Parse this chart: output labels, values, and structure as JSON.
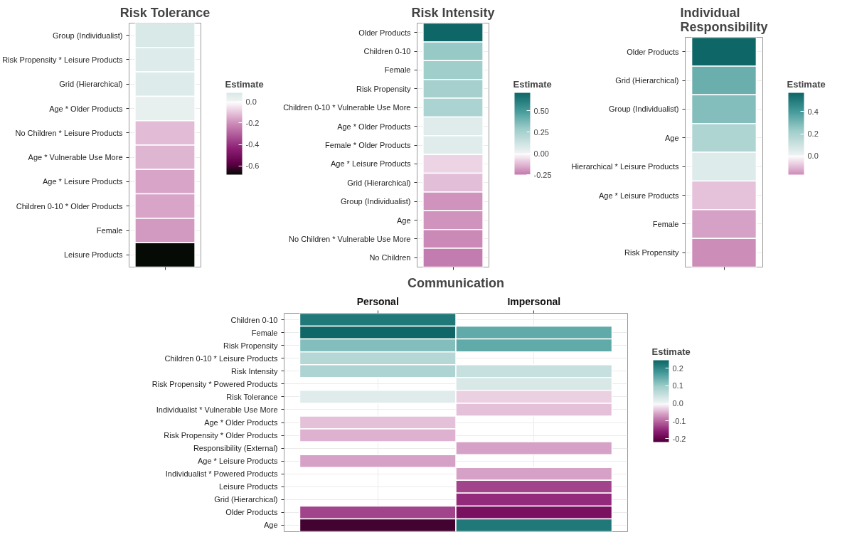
{
  "chart_data": [
    {
      "type": "heatmap",
      "title": "Risk Tolerance",
      "clabel": "Estimate",
      "grid": true,
      "categories": [
        null
      ],
      "y_categories": [
        "Group (Individualist)",
        "Risk Propensity * Leisure Products",
        "Grid (Hierarchical)",
        "Age * Older Products",
        "No Children * Leisure Products",
        "Age * Vulnerable Use More",
        "Age * Leisure Products",
        "Children 0-10 * Older Products",
        "Female",
        "Leisure Products"
      ],
      "cells": [
        [
          0.08
        ],
        [
          0.06
        ],
        [
          0.06
        ],
        [
          0.03
        ],
        [
          -0.12
        ],
        [
          -0.13
        ],
        [
          -0.16
        ],
        [
          -0.16
        ],
        [
          -0.18
        ],
        [
          -0.68
        ]
      ],
      "clim": [
        -0.68,
        0.08
      ],
      "cticks": [
        {
          "value": 0,
          "label": "0.0"
        },
        {
          "value": -0.2,
          "label": "-0.2"
        },
        {
          "value": -0.4,
          "label": "-0.4"
        },
        {
          "value": -0.6,
          "label": "-0.6"
        }
      ]
    },
    {
      "type": "heatmap",
      "title": "Risk Intensity",
      "clabel": "Estimate",
      "grid": true,
      "categories": [
        null
      ],
      "y_categories": [
        "Older Products",
        "Children 0-10",
        "Female",
        "Risk Propensity",
        "Children 0-10 * Vulnerable Use More",
        "Age * Older Products",
        "Female * Older Products",
        "Age * Leisure Products",
        "Grid (Hierarchical)",
        "Group (Individualist)",
        "Age",
        "No Children * Vulnerable Use More",
        "No Children"
      ],
      "cells": [
        [
          0.71
        ],
        [
          0.3
        ],
        [
          0.28
        ],
        [
          0.26
        ],
        [
          0.24
        ],
        [
          0.06
        ],
        [
          0.06
        ],
        [
          -0.08
        ],
        [
          -0.12
        ],
        [
          -0.2
        ],
        [
          -0.2
        ],
        [
          -0.22
        ],
        [
          -0.25
        ]
      ],
      "clim": [
        -0.25,
        0.71
      ],
      "cticks": [
        {
          "value": 0.5,
          "label": "0.50"
        },
        {
          "value": 0.25,
          "label": "0.25"
        },
        {
          "value": 0,
          "label": "0.00"
        },
        {
          "value": -0.25,
          "label": "-0.25"
        }
      ]
    },
    {
      "type": "heatmap",
      "title": "Individual\nResponsibility",
      "clabel": "Estimate",
      "grid": true,
      "categories": [
        null
      ],
      "y_categories": [
        "Older Products",
        "Grid (Hierarchical)",
        "Group (Individualist)",
        "Age",
        "Hierarchical * Leisure Products",
        "Age * Leisure Products",
        "Female",
        "Risk Propensity"
      ],
      "cells": [
        [
          0.57
        ],
        [
          0.33
        ],
        [
          0.28
        ],
        [
          0.18
        ],
        [
          0.05
        ],
        [
          -0.09
        ],
        [
          -0.14
        ],
        [
          -0.17
        ]
      ],
      "clim": [
        -0.17,
        0.57
      ],
      "cticks": [
        {
          "value": 0.4,
          "label": "0.4"
        },
        {
          "value": 0.2,
          "label": "0.2"
        },
        {
          "value": 0,
          "label": "0.0"
        }
      ]
    },
    {
      "type": "heatmap",
      "title": "Communication",
      "clabel": "Estimate",
      "grid": true,
      "categories": [
        "Personal",
        "Impersonal"
      ],
      "y_categories": [
        "Children 0-10",
        "Female",
        "Risk Propensity",
        "Children 0-10 * Leisure Products",
        "Risk Intensity",
        "Risk Propensity * Powered Products",
        "Risk Tolerance",
        "Individualist * Vulnerable Use More",
        "Age * Older Products",
        "Risk Propensity * Older Products",
        "Responsibility (External)",
        "Age * Leisure Products",
        "Individualist * Powered Products",
        "Leisure Products",
        "Grid (Hierarchical)",
        "Older Products",
        "Age"
      ],
      "cells": [
        [
          0.22,
          null
        ],
        [
          0.245,
          0.15
        ],
        [
          0.12,
          0.15
        ],
        [
          0.07,
          null
        ],
        [
          0.08,
          0.05
        ],
        [
          null,
          0.03
        ],
        [
          0.02,
          -0.03
        ],
        [
          null,
          -0.04
        ],
        [
          -0.04,
          null
        ],
        [
          -0.05,
          null
        ],
        [
          null,
          -0.06
        ],
        [
          -0.06,
          null
        ],
        [
          null,
          -0.06
        ],
        [
          null,
          -0.13
        ],
        [
          null,
          -0.15
        ],
        [
          -0.13,
          -0.18
        ],
        [
          -0.22,
          0.22
        ]
      ],
      "clim": [
        -0.22,
        0.245
      ],
      "cticks": [
        {
          "value": 0.2,
          "label": "0.2"
        },
        {
          "value": 0.1,
          "label": "0.1"
        },
        {
          "value": 0,
          "label": "0.0"
        },
        {
          "value": -0.1,
          "label": "-0.1"
        },
        {
          "value": -0.2,
          "label": "-0.2"
        }
      ]
    }
  ]
}
